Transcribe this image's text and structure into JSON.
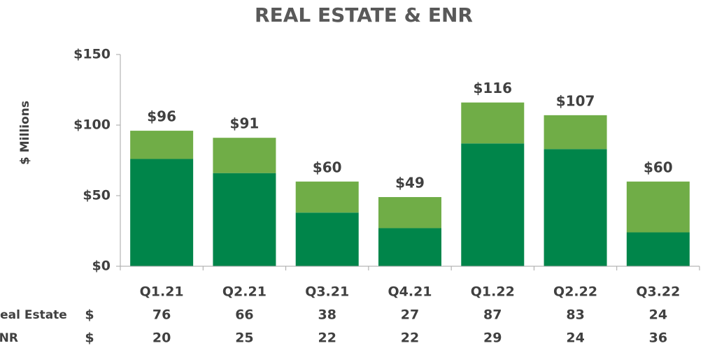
{
  "chart_data": {
    "type": "stacked_bar",
    "title": "REAL ESTATE & ENR",
    "y_label": "$ Millions",
    "categories": [
      "Q1.21",
      "Q2.21",
      "Q3.21",
      "Q4.21",
      "Q1.22",
      "Q2.22",
      "Q3.22"
    ],
    "series": [
      {
        "name": "Real Estate",
        "color": "#00854a",
        "values": [
          76,
          66,
          38,
          27,
          87,
          83,
          24
        ]
      },
      {
        "name": "ENR",
        "color": "#70ad47",
        "values": [
          20,
          25,
          22,
          22,
          29,
          24,
          36
        ]
      }
    ],
    "totals": [
      96,
      91,
      60,
      49,
      116,
      107,
      60
    ],
    "total_labels": [
      "$96",
      "$91",
      "$60",
      "$49",
      "$116",
      "$107",
      "$60"
    ],
    "table_unit": "$",
    "ylim": [
      0,
      150
    ],
    "yticks": [
      {
        "value": 0,
        "label": "$0"
      },
      {
        "value": 50,
        "label": "$50"
      },
      {
        "value": 100,
        "label": "$100"
      },
      {
        "value": 150,
        "label": "$150"
      }
    ]
  }
}
